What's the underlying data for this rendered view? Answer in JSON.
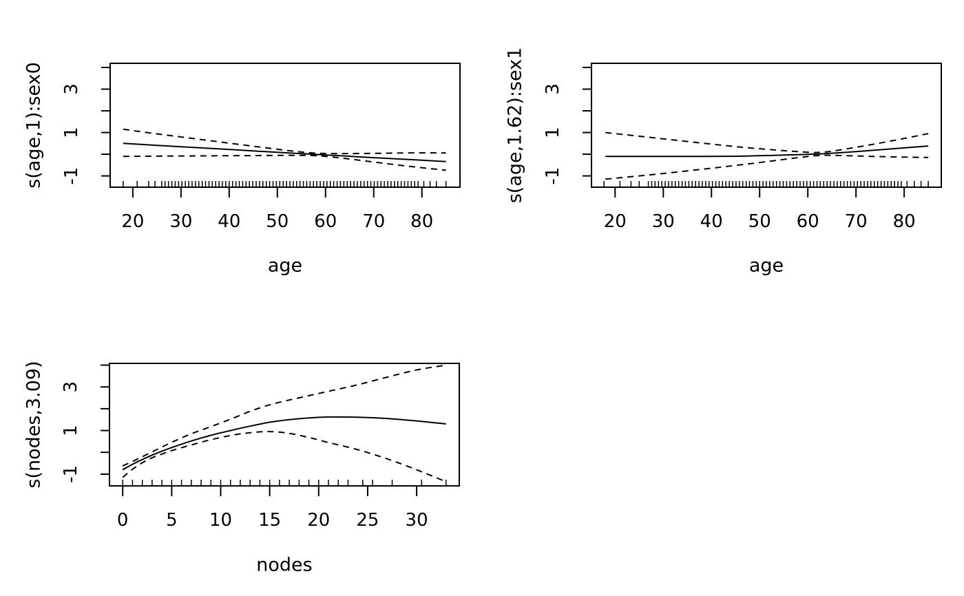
{
  "colors": {
    "foreground": "#000000",
    "background": "#ffffff"
  },
  "chart_data": [
    {
      "type": "line",
      "position": "top-left",
      "title": "",
      "xlabel": "age",
      "ylabel": "s(age,1):sex0",
      "grid": false,
      "legend": null,
      "xlim": [
        15.3,
        87.9
      ],
      "ylim": [
        -1.52,
        4.19
      ],
      "x_ticks": [
        20,
        30,
        40,
        50,
        60,
        70,
        80
      ],
      "x_tick_labels": [
        "20",
        "30",
        "40",
        "50",
        "60",
        "70",
        "80"
      ],
      "y_ticks": [
        -1,
        0,
        1,
        2,
        3,
        4
      ],
      "y_tick_labeled": {
        "values": [
          -1,
          1,
          3
        ],
        "labels": [
          "-1",
          "1",
          "3"
        ]
      },
      "series": [
        {
          "name": "smooth-estimate",
          "style": "solid",
          "x": [
            18,
            25,
            32,
            39,
            46,
            53,
            58,
            63,
            70,
            77,
            85
          ],
          "y": [
            0.5,
            0.41,
            0.32,
            0.23,
            0.14,
            0.05,
            -0.01,
            -0.07,
            -0.16,
            -0.24,
            -0.34
          ]
        },
        {
          "name": "upper-95ci",
          "style": "dashed",
          "x": [
            18,
            25,
            32,
            39,
            46,
            53,
            58,
            63,
            70,
            77,
            85
          ],
          "y": [
            1.15,
            0.94,
            0.74,
            0.54,
            0.34,
            0.15,
            0.05,
            0.03,
            0.04,
            0.06,
            0.06
          ]
        },
        {
          "name": "lower-95ci",
          "style": "dashed",
          "x": [
            18,
            25,
            32,
            39,
            46,
            53,
            58,
            63,
            70,
            77,
            85
          ],
          "y": [
            -0.1,
            -0.09,
            -0.08,
            -0.07,
            -0.06,
            -0.05,
            -0.07,
            -0.17,
            -0.36,
            -0.55,
            -0.74
          ]
        }
      ],
      "rug": [
        18,
        20.9,
        23.3,
        24.6,
        26,
        26.7,
        27.4,
        28.1,
        28.8,
        29.5,
        30.2,
        30.9,
        31.6,
        32.3,
        33,
        33.7,
        34.4,
        35.1,
        35.8,
        36.5,
        37.2,
        37.9,
        38.6,
        39.3,
        40,
        40.7,
        41.4,
        42.1,
        42.8,
        43.5,
        44.2,
        44.9,
        45.6,
        46.3,
        47,
        47.7,
        48.4,
        49.1,
        49.8,
        50.5,
        51.2,
        51.9,
        52.6,
        53.3,
        54,
        54.7,
        55.4,
        56.1,
        56.8,
        57.5,
        58.2,
        58.9,
        59.6,
        60.3,
        61,
        61.7,
        62.4,
        63.1,
        63.8,
        64.5,
        65.2,
        65.9,
        66.6,
        67.3,
        68,
        68.7,
        69.4,
        70.1,
        70.8,
        71.5,
        72.2,
        72.9,
        73.6,
        74.3,
        75,
        75.7,
        76.4,
        77.1,
        77.8,
        78.5,
        79.2,
        80.4,
        81.7,
        83,
        85
      ]
    },
    {
      "type": "line",
      "position": "top-right",
      "title": "",
      "xlabel": "age",
      "ylabel": "s(age,1.62):sex1",
      "grid": false,
      "legend": null,
      "xlim": [
        15.1,
        87.7
      ],
      "ylim": [
        -1.52,
        4.19
      ],
      "x_ticks": [
        20,
        30,
        40,
        50,
        60,
        70,
        80
      ],
      "x_tick_labels": [
        "20",
        "30",
        "40",
        "50",
        "60",
        "70",
        "80"
      ],
      "y_ticks": [
        -1,
        0,
        1,
        2,
        3,
        4
      ],
      "y_tick_labeled": {
        "values": [
          -1,
          1,
          3
        ],
        "labels": [
          "-1",
          "1",
          "3"
        ]
      },
      "series": [
        {
          "name": "smooth-estimate",
          "style": "solid",
          "x": [
            18,
            25,
            32,
            39,
            46,
            53,
            58,
            63,
            70,
            77,
            85
          ],
          "y": [
            -0.1,
            -0.1,
            -0.1,
            -0.1,
            -0.09,
            -0.05,
            -0.02,
            0.02,
            0.12,
            0.24,
            0.38
          ]
        },
        {
          "name": "upper-95ci",
          "style": "dashed",
          "x": [
            18,
            25,
            32,
            39,
            46,
            53,
            58,
            63,
            70,
            77,
            85
          ],
          "y": [
            1.0,
            0.83,
            0.66,
            0.49,
            0.33,
            0.2,
            0.12,
            0.09,
            0.32,
            0.6,
            0.95
          ]
        },
        {
          "name": "lower-95ci",
          "style": "dashed",
          "x": [
            18,
            25,
            32,
            39,
            46,
            53,
            58,
            63,
            70,
            77,
            85
          ],
          "y": [
            -1.15,
            -1.0,
            -0.84,
            -0.67,
            -0.49,
            -0.3,
            -0.16,
            -0.05,
            -0.08,
            -0.12,
            -0.15
          ]
        }
      ],
      "rug": [
        17.7,
        21,
        23.3,
        25,
        26.9,
        27.6,
        28.3,
        29,
        29.7,
        30.4,
        31.1,
        31.8,
        32.5,
        33.2,
        33.9,
        34.6,
        35.3,
        36,
        36.7,
        37.4,
        38.1,
        38.8,
        39.5,
        40.2,
        40.9,
        41.6,
        42.3,
        43,
        43.7,
        44.4,
        45.1,
        45.8,
        46.5,
        47.2,
        47.9,
        48.6,
        49.3,
        50,
        50.7,
        51.4,
        52.1,
        52.8,
        53.5,
        54.2,
        54.9,
        55.6,
        56.3,
        57,
        57.7,
        58.4,
        59.1,
        59.8,
        60.5,
        61.2,
        61.9,
        62.6,
        63.3,
        64,
        64.7,
        65.4,
        66.1,
        66.8,
        67.5,
        68.2,
        68.9,
        69.6,
        70.3,
        71,
        71.7,
        72.4,
        73.1,
        73.8,
        74.5,
        75.2,
        75.9,
        76.6,
        77.3,
        78,
        78.7,
        79.4,
        80.6,
        82.1,
        83.5,
        85
      ]
    },
    {
      "type": "line",
      "position": "bottom-left",
      "title": "",
      "xlabel": "nodes",
      "ylabel": "s(nodes,3.09)",
      "grid": false,
      "legend": null,
      "xlim": [
        -1.35,
        34.35
      ],
      "ylim": [
        -1.54,
        4.08
      ],
      "x_ticks": [
        0,
        5,
        10,
        15,
        20,
        25,
        30
      ],
      "x_tick_labels": [
        "0",
        "5",
        "10",
        "15",
        "20",
        "25",
        "30"
      ],
      "y_ticks": [
        -1,
        0,
        1,
        2,
        3,
        4
      ],
      "y_tick_labeled": {
        "values": [
          -1,
          1,
          3
        ],
        "labels": [
          "-1",
          "1",
          "3"
        ]
      },
      "series": [
        {
          "name": "smooth-estimate",
          "style": "solid",
          "x": [
            0,
            1,
            2,
            3,
            4,
            5,
            7,
            9,
            11,
            13,
            15,
            17,
            19,
            21,
            24,
            27,
            30,
            33
          ],
          "y": [
            -0.8,
            -0.55,
            -0.33,
            -0.13,
            0.05,
            0.22,
            0.52,
            0.78,
            1.0,
            1.2,
            1.38,
            1.5,
            1.58,
            1.62,
            1.61,
            1.55,
            1.44,
            1.3
          ]
        },
        {
          "name": "upper-95ci",
          "style": "dashed",
          "x": [
            0,
            1,
            2,
            3,
            4,
            5,
            7,
            9,
            11,
            13,
            15,
            17,
            19,
            21,
            24,
            27,
            30,
            33
          ],
          "y": [
            -0.62,
            -0.42,
            -0.2,
            0.02,
            0.24,
            0.46,
            0.85,
            1.18,
            1.52,
            1.88,
            2.18,
            2.4,
            2.6,
            2.8,
            3.1,
            3.45,
            3.78,
            4.0
          ]
        },
        {
          "name": "lower-95ci",
          "style": "dashed",
          "x": [
            0,
            1,
            2,
            3,
            4,
            5,
            7,
            9,
            11,
            13,
            15,
            17,
            19,
            21,
            24,
            27,
            30,
            33
          ],
          "y": [
            -1.15,
            -0.78,
            -0.48,
            -0.25,
            -0.08,
            0.08,
            0.34,
            0.58,
            0.77,
            0.9,
            0.95,
            0.87,
            0.68,
            0.45,
            0.12,
            -0.3,
            -0.8,
            -1.35
          ]
        }
      ],
      "rug": [
        0,
        1,
        2,
        3,
        4,
        5,
        6,
        7,
        8,
        9,
        10,
        11,
        12,
        13,
        14,
        15,
        16,
        17,
        18,
        19,
        20,
        21,
        22,
        23,
        24.5,
        25.5,
        27.5,
        30.5,
        33
      ]
    }
  ]
}
